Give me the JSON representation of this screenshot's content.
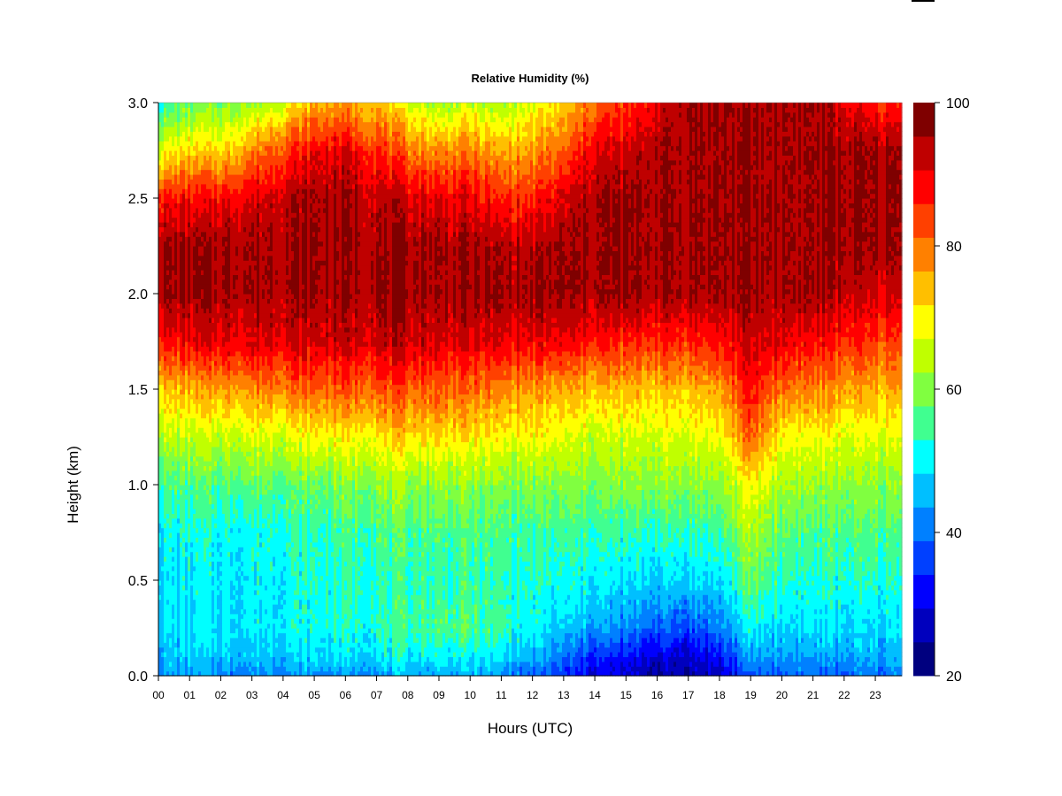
{
  "chart_data": {
    "type": "heatmap",
    "title": "Relative Humidity (%)",
    "xlabel": "Hours (UTC)",
    "ylabel": "Height (km)",
    "xlim": [
      0,
      23.85
    ],
    "ylim": [
      0.0,
      3.0
    ],
    "x_ticks": [
      "00",
      "01",
      "02",
      "03",
      "04",
      "05",
      "06",
      "07",
      "08",
      "09",
      "10",
      "11",
      "12",
      "13",
      "14",
      "15",
      "16",
      "17",
      "18",
      "19",
      "20",
      "21",
      "22",
      "23"
    ],
    "y_ticks": [
      0.0,
      0.5,
      1.0,
      1.5,
      2.0,
      2.5,
      3.0
    ],
    "y_tick_labels": [
      "0.0",
      "0.5",
      "1.0",
      "1.5",
      "2.0",
      "2.5",
      "3.0"
    ],
    "colorbar": {
      "range": [
        20,
        100
      ],
      "step": 5,
      "ticks": [
        20,
        40,
        60,
        80,
        100
      ],
      "tick_labels": [
        "20",
        "40",
        "60",
        "80",
        "100"
      ],
      "colors": [
        "#00007f",
        "#0000be",
        "#0000fe",
        "#0040ff",
        "#0080ff",
        "#00bfff",
        "#00ffff",
        "#40ff90",
        "#80ff40",
        "#c0ff00",
        "#ffff00",
        "#ffbf00",
        "#ff8000",
        "#ff4000",
        "#ff0000",
        "#bf0000",
        "#7f0000"
      ]
    },
    "hours": [
      0,
      1,
      2,
      3,
      4,
      5,
      6,
      7,
      8,
      9,
      10,
      11,
      12,
      13,
      14,
      15,
      16,
      17,
      18,
      19,
      20,
      21,
      22,
      23
    ],
    "heights_km": [
      0.0,
      0.1,
      0.25,
      0.5,
      0.75,
      1.0,
      1.25,
      1.5,
      1.75,
      2.0,
      2.25,
      2.5,
      2.75,
      3.0
    ],
    "rh_by_hour": [
      [
        44,
        48,
        50,
        51,
        52,
        57,
        67,
        77,
        92,
        100,
        100,
        92,
        70,
        55
      ],
      [
        44,
        48,
        50,
        51,
        53,
        58,
        67,
        78,
        93,
        100,
        100,
        92,
        75,
        60
      ],
      [
        43,
        48,
        51,
        51,
        53,
        58,
        68,
        80,
        95,
        100,
        100,
        93,
        75,
        62
      ],
      [
        43,
        48,
        51,
        52,
        53,
        60,
        70,
        82,
        95,
        100,
        100,
        95,
        82,
        65
      ],
      [
        44,
        49,
        52,
        53,
        55,
        60,
        70,
        84,
        96,
        100,
        100,
        98,
        88,
        70
      ],
      [
        44,
        50,
        53,
        54,
        55,
        60,
        72,
        85,
        96,
        100,
        100,
        100,
        93,
        78
      ],
      [
        45,
        50,
        54,
        55,
        57,
        62,
        73,
        86,
        97,
        100,
        100,
        100,
        95,
        80
      ],
      [
        45,
        51,
        55,
        55,
        58,
        63,
        74,
        86,
        97,
        100,
        100,
        98,
        90,
        78
      ],
      [
        46,
        52,
        57,
        56,
        58,
        64,
        75,
        86,
        97,
        100,
        100,
        96,
        84,
        70
      ],
      [
        46,
        52,
        58,
        56,
        58,
        64,
        75,
        86,
        96,
        100,
        100,
        95,
        82,
        65
      ],
      [
        46,
        52,
        58,
        56,
        58,
        63,
        74,
        84,
        95,
        100,
        100,
        94,
        83,
        68
      ],
      [
        44,
        50,
        56,
        55,
        57,
        62,
        72,
        82,
        94,
        100,
        98,
        90,
        78,
        65
      ],
      [
        40,
        46,
        52,
        54,
        56,
        62,
        72,
        80,
        94,
        100,
        98,
        90,
        80,
        70
      ],
      [
        35,
        40,
        48,
        53,
        56,
        62,
        70,
        78,
        93,
        100,
        100,
        95,
        85,
        75
      ],
      [
        30,
        35,
        45,
        52,
        56,
        62,
        68,
        78,
        92,
        100,
        100,
        100,
        95,
        85
      ],
      [
        27,
        32,
        42,
        50,
        55,
        62,
        68,
        77,
        90,
        100,
        100,
        100,
        95,
        88
      ],
      [
        25,
        30,
        40,
        50,
        55,
        63,
        70,
        77,
        90,
        100,
        100,
        100,
        100,
        95
      ],
      [
        25,
        29,
        38,
        50,
        56,
        63,
        70,
        78,
        90,
        100,
        100,
        100,
        100,
        100
      ],
      [
        28,
        33,
        42,
        50,
        56,
        63,
        71,
        80,
        92,
        100,
        100,
        100,
        100,
        100
      ],
      [
        38,
        45,
        52,
        60,
        66,
        72,
        85,
        92,
        96,
        100,
        100,
        100,
        100,
        100
      ],
      [
        40,
        45,
        50,
        55,
        60,
        66,
        73,
        84,
        95,
        100,
        100,
        100,
        100,
        100
      ],
      [
        40,
        45,
        50,
        54,
        58,
        64,
        72,
        82,
        92,
        100,
        100,
        100,
        100,
        100
      ],
      [
        40,
        45,
        50,
        54,
        58,
        63,
        70,
        80,
        90,
        98,
        100,
        100,
        100,
        95
      ],
      [
        42,
        46,
        50,
        54,
        58,
        63,
        70,
        78,
        88,
        96,
        100,
        100,
        100,
        90
      ]
    ]
  }
}
